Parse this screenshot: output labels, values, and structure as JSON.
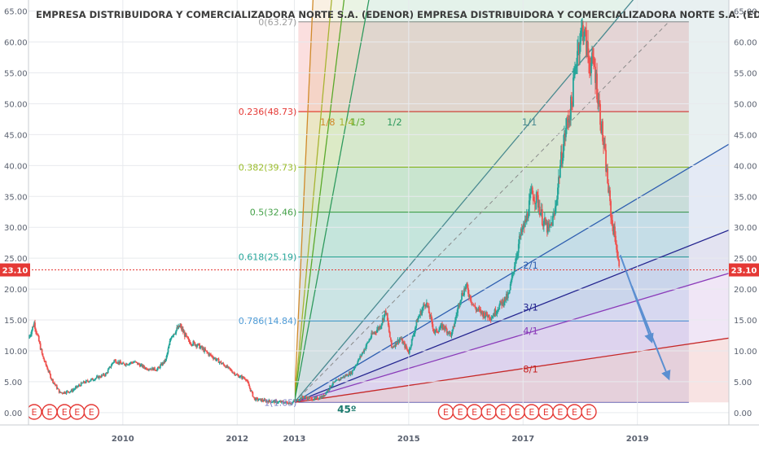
{
  "chart_data": {
    "type": "candlestick",
    "title": "EMPRESA DISTRIBUIDORA Y COMERCIALIZADORA NORTE S.A. (EDENOR) EMPRESA DISTRIBUIDORA Y COMERCIALIZADORA NORTE S.A. (EDENOR) AMERICAN D",
    "x_ticks": [
      "2010",
      "2012",
      "2013",
      "2015",
      "2017",
      "2019"
    ],
    "xlim": [
      2008.35,
      2020.6
    ],
    "y_ticks": [
      "0.00",
      "5.00",
      "10.00",
      "15.00",
      "20.00",
      "25.00",
      "30.00",
      "35.00",
      "40.00",
      "45.00",
      "50.00",
      "55.00",
      "60.00",
      "65.00"
    ],
    "ylim": [
      -2.0,
      66.8
    ],
    "last_price": {
      "label": "23.10",
      "value": 23.1,
      "color": "#e53935"
    },
    "price_path": [
      [
        2008.35,
        12.0
      ],
      [
        2008.45,
        14.5
      ],
      [
        2008.6,
        9.0
      ],
      [
        2008.75,
        5.5
      ],
      [
        2008.9,
        3.2
      ],
      [
        2009.1,
        3.5
      ],
      [
        2009.3,
        4.8
      ],
      [
        2009.5,
        5.5
      ],
      [
        2009.7,
        6.2
      ],
      [
        2009.85,
        8.5
      ],
      [
        2010.0,
        7.8
      ],
      [
        2010.2,
        8.2
      ],
      [
        2010.4,
        7.2
      ],
      [
        2010.6,
        7.0
      ],
      [
        2010.75,
        8.5
      ],
      [
        2010.85,
        12.5
      ],
      [
        2011.0,
        14.0
      ],
      [
        2011.15,
        11.5
      ],
      [
        2011.3,
        11.0
      ],
      [
        2011.5,
        9.5
      ],
      [
        2011.65,
        8.5
      ],
      [
        2011.8,
        7.5
      ],
      [
        2012.0,
        6.0
      ],
      [
        2012.15,
        5.5
      ],
      [
        2012.3,
        2.2
      ],
      [
        2012.5,
        1.9
      ],
      [
        2012.75,
        1.7
      ],
      [
        2012.95,
        1.6
      ],
      [
        2013.15,
        2.5
      ],
      [
        2013.35,
        2.2
      ],
      [
        2013.5,
        2.6
      ],
      [
        2013.65,
        4.5
      ],
      [
        2013.8,
        5.5
      ],
      [
        2014.0,
        6.5
      ],
      [
        2014.15,
        9.0
      ],
      [
        2014.35,
        12.5
      ],
      [
        2014.5,
        14.0
      ],
      [
        2014.6,
        16.5
      ],
      [
        2014.7,
        10.5
      ],
      [
        2014.85,
        12.0
      ],
      [
        2015.0,
        9.8
      ],
      [
        2015.15,
        15.0
      ],
      [
        2015.3,
        18.0
      ],
      [
        2015.45,
        13.0
      ],
      [
        2015.6,
        14.0
      ],
      [
        2015.75,
        12.5
      ],
      [
        2015.9,
        18.5
      ],
      [
        2016.0,
        20.5
      ],
      [
        2016.15,
        17.0
      ],
      [
        2016.3,
        16.0
      ],
      [
        2016.45,
        15.5
      ],
      [
        2016.6,
        17.5
      ],
      [
        2016.75,
        19.0
      ],
      [
        2016.85,
        24.0
      ],
      [
        2016.95,
        28.5
      ],
      [
        2017.05,
        31.0
      ],
      [
        2017.15,
        35.5
      ],
      [
        2017.25,
        34.5
      ],
      [
        2017.35,
        31.0
      ],
      [
        2017.45,
        29.5
      ],
      [
        2017.55,
        32.0
      ],
      [
        2017.65,
        40.0
      ],
      [
        2017.75,
        46.0
      ],
      [
        2017.85,
        50.0
      ],
      [
        2017.95,
        59.0
      ],
      [
        2018.05,
        62.5
      ],
      [
        2018.15,
        57.0
      ],
      [
        2018.25,
        56.0
      ],
      [
        2018.35,
        48.0
      ],
      [
        2018.45,
        40.0
      ],
      [
        2018.55,
        31.0
      ],
      [
        2018.62,
        28.0
      ],
      [
        2018.68,
        23.1
      ]
    ],
    "projection_arrows": [
      {
        "from": [
          2018.7,
          25.5
        ],
        "to": [
          2019.25,
          11.5
        ]
      },
      {
        "from": [
          2018.9,
          20.5
        ],
        "to": [
          2019.55,
          5.5
        ]
      }
    ],
    "fib_retracement": {
      "x_start": 2013.07,
      "x_end": 2019.9,
      "levels": [
        {
          "label": "0(63.27)",
          "value": 63.27,
          "color": "#9e9e9e"
        },
        {
          "label": "0.236(48.73)",
          "value": 48.73,
          "color": "#e53935"
        },
        {
          "label": "0.382(39.73)",
          "value": 39.73,
          "color": "#9bbd2c"
        },
        {
          "label": "0.5(32.46)",
          "value": 32.46,
          "color": "#43a047"
        },
        {
          "label": "0.618(25.19)",
          "value": 25.19,
          "color": "#26a69a"
        },
        {
          "label": "0.786(14.84)",
          "value": 14.84,
          "color": "#4e9bd6"
        },
        {
          "label": "1(1.65)",
          "value": 1.65,
          "color": "#7a7fc4"
        }
      ]
    },
    "gann_fan": {
      "origin": [
        2013.0,
        1.65
      ],
      "angle_label": "45º",
      "lines": [
        {
          "label": "1/8",
          "slope": 200.0,
          "color": "#d08a2a"
        },
        {
          "label": "1/4",
          "slope": 100.0,
          "color": "#a8b432"
        },
        {
          "label": "1/3",
          "slope": 75.0,
          "color": "#5aa92b"
        },
        {
          "label": "1/2",
          "slope": 50.0,
          "color": "#2e9a5e"
        },
        {
          "label": "1/1",
          "slope": 11.0,
          "color": "#4a8a90"
        },
        {
          "label": "2/1",
          "slope": 5.5,
          "color": "#2f5fb0"
        },
        {
          "label": "3/1",
          "slope": 3.67,
          "color": "#24248f"
        },
        {
          "label": "4/1",
          "slope": 2.75,
          "color": "#8a3ab9"
        },
        {
          "label": "8/1",
          "slope": 1.37,
          "color": "#c62828"
        }
      ]
    },
    "event_markers": {
      "letter": "E",
      "x": [
        2008.45,
        2008.72,
        2008.98,
        2009.2,
        2009.45,
        2015.65,
        2015.9,
        2016.15,
        2016.4,
        2016.65,
        2016.9,
        2017.15,
        2017.4,
        2017.65,
        2017.9,
        2018.15
      ]
    }
  }
}
